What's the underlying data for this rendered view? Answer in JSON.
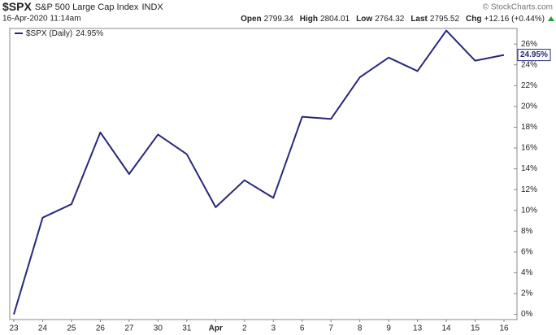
{
  "header": {
    "symbol": "$SPX",
    "name": "S&P 500 Large Cap Index",
    "exchange": "INDX",
    "copyright": "© StockCharts.com",
    "date": "16-Apr-2020 11:14am",
    "quote": [
      {
        "label": "Open",
        "value": "2799.34"
      },
      {
        "label": "High",
        "value": "2804.01"
      },
      {
        "label": "Low",
        "value": "2764.32"
      },
      {
        "label": "Last",
        "value": "2795.52"
      },
      {
        "label": "Chg",
        "value": "+12.16 (+0.44%)"
      }
    ]
  },
  "chart_data": {
    "type": "line",
    "categories": [
      "23",
      "24",
      "25",
      "26",
      "27",
      "30",
      "31",
      "Apr",
      "2",
      "3",
      "6",
      "7",
      "8",
      "9",
      "13",
      "14",
      "15",
      "16"
    ],
    "series": [
      {
        "name": "$SPX (Daily)",
        "color": "#28287a",
        "last_label": "24.95%",
        "values": [
          0,
          9.3,
          10.6,
          17.5,
          13.5,
          17.3,
          15.4,
          10.3,
          12.9,
          11.2,
          19.0,
          18.8,
          22.8,
          24.7,
          23.4,
          27.3,
          24.4,
          24.95
        ]
      }
    ],
    "ylim": [
      -0.5,
      27.5
    ],
    "yticks": [
      {
        "value": 0,
        "label": "0%"
      },
      {
        "value": 2,
        "label": "2%"
      },
      {
        "value": 4,
        "label": "4%"
      },
      {
        "value": 6,
        "label": "6%"
      },
      {
        "value": 8,
        "label": "8%"
      },
      {
        "value": 10,
        "label": "10%"
      },
      {
        "value": 12,
        "label": "12%"
      },
      {
        "value": 14,
        "label": "14%"
      },
      {
        "value": 16,
        "label": "16%"
      },
      {
        "value": 18,
        "label": "18%"
      },
      {
        "value": 20,
        "label": "20%"
      },
      {
        "value": 22,
        "label": "22%"
      },
      {
        "value": 24,
        "label": "24%"
      },
      {
        "value": 26,
        "label": "26%"
      }
    ],
    "grid": false
  }
}
